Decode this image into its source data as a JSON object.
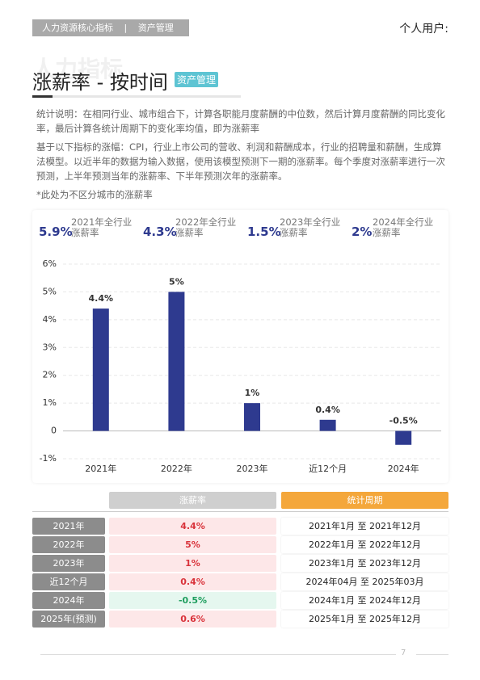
{
  "header": {
    "tag1": "人力资源核心指标",
    "tag2": "资产管理",
    "user": "个人用户:"
  },
  "watermark": "人力指标",
  "title": "涨薪率 - 按时间",
  "badge": "资产管理",
  "paragraphs": [
    "统计说明：在相同行业、城市组合下，计算各职能月度薪酬的中位数，然后计算月度薪酬的同比变化率，最后计算各统计周期下的变化率均值，即为涨薪率",
    "基于以下指标的涨幅：CPI，行业上市公司的营收、利润和薪酬成本，行业的招聘量和薪酬，生成算法模型。以近半年的数据为输入数据，使用该模型预测下一期的涨薪率。每个季度对涨薪率进行一次预测，上半年预测当年的涨薪率、下半年预测次年的涨薪率。",
    "*此处为不区分城市的涨薪率"
  ],
  "summary": [
    {
      "value": "5.9%",
      "label_lines": [
        "2021年全行业",
        "涨薪率"
      ]
    },
    {
      "value": "4.3%",
      "label_lines": [
        "2022年全行业",
        "涨薪率"
      ]
    },
    {
      "value": "1.5%",
      "label_lines": [
        "2023年全行业",
        "涨薪率"
      ]
    },
    {
      "value": "2%",
      "label_lines": [
        "2024年全行业",
        "涨薪率"
      ]
    }
  ],
  "chart_data": {
    "type": "bar",
    "categories": [
      "2021年",
      "2022年",
      "2023年",
      "近12个月",
      "2024年"
    ],
    "values": [
      4.4,
      5,
      1,
      0.4,
      -0.5
    ],
    "value_labels": [
      "4.4%",
      "5%",
      "1%",
      "0.4%",
      "-0.5%"
    ],
    "color": "#2e3a8f",
    "ylim": [
      -1,
      6
    ],
    "yticks": [
      {
        "value": -1,
        "label": "-1%"
      },
      {
        "value": 0,
        "label": "0"
      },
      {
        "value": 1,
        "label": "1%"
      },
      {
        "value": 2,
        "label": "2%"
      },
      {
        "value": 3,
        "label": "3%"
      },
      {
        "value": 4,
        "label": "4%"
      },
      {
        "value": 5,
        "label": "5%"
      },
      {
        "value": 6,
        "label": "6%"
      }
    ],
    "grid": true
  },
  "table": {
    "headers": [
      "涨薪率",
      "统计周期"
    ],
    "rows": [
      [
        "2021年",
        "4.4%",
        "2021年1月 至 2021年12月"
      ],
      [
        "2022年",
        "5%",
        "2022年1月 至 2022年12月"
      ],
      [
        "2023年",
        "1%",
        "2023年1月 至 2023年12月"
      ],
      [
        "近12个月",
        "0.4%",
        "2024年04月 至 2025年03月"
      ],
      [
        "2024年",
        "-0.5%",
        "2024年1月 至 2024年12月"
      ],
      [
        "2025年(预测)",
        "0.6%",
        "2025年1月 至 2025年12月"
      ]
    ]
  },
  "footer": {
    "page": "7"
  }
}
